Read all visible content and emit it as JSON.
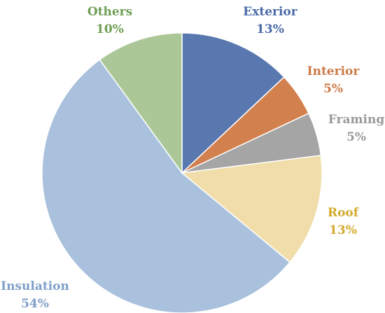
{
  "chart_data": {
    "type": "pie",
    "slices": [
      {
        "label": "Exterior",
        "value": 13,
        "value_label": "13%",
        "color": "#5a78b0"
      },
      {
        "label": "Interior",
        "value": 5,
        "value_label": "5%",
        "color": "#d2804d"
      },
      {
        "label": "Framing",
        "value": 5,
        "value_label": "5%",
        "color": "#a5a5a5"
      },
      {
        "label": "Roof",
        "value": 13,
        "value_label": "13%",
        "color": "#f0ddaa"
      },
      {
        "label": "Insulation",
        "value": 54,
        "value_label": "54%",
        "color": "#a9c1dc"
      },
      {
        "label": "Others",
        "value": 10,
        "value_label": "10%",
        "color": "#abc797"
      }
    ],
    "label_colors": {
      "Exterior": "#4a6aa8",
      "Interior": "#cc7a46",
      "Framing": "#9a9a9a",
      "Roof": "#d4a92c",
      "Insulation": "#7e9fc8",
      "Others": "#6f9e55"
    },
    "legend": "none"
  }
}
